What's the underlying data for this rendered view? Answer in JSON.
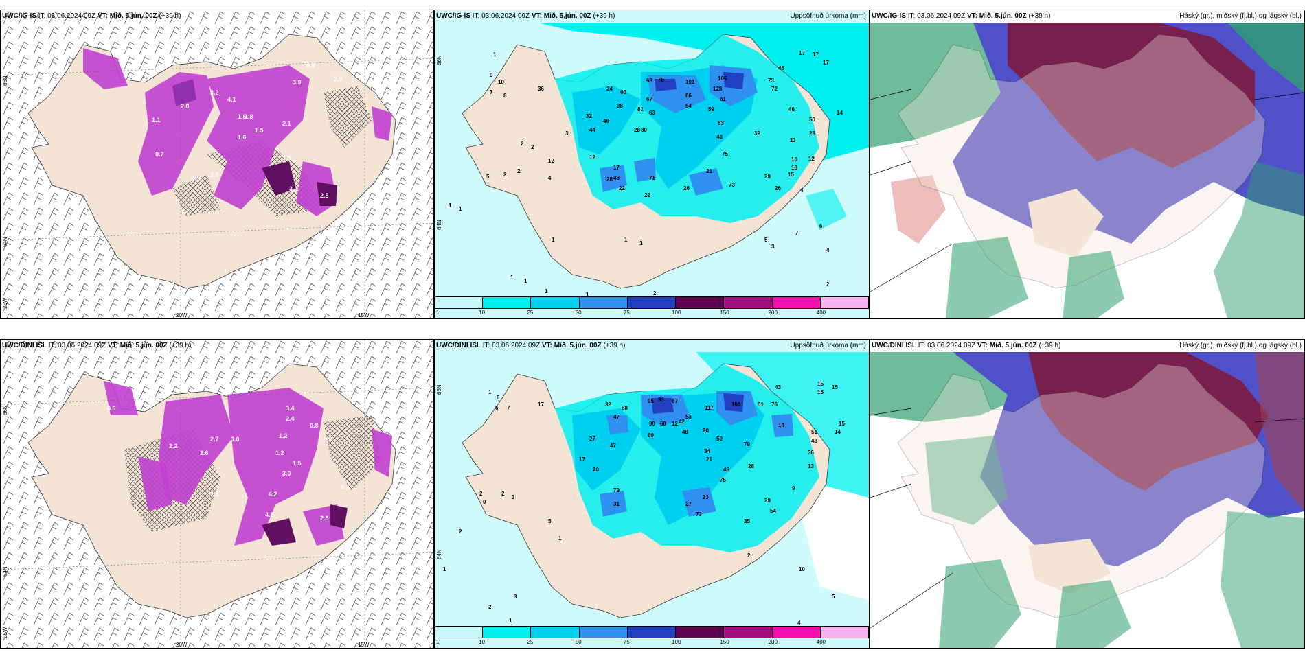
{
  "colors": {
    "land": "#f3e4d6",
    "sea_light": "#cffbfb",
    "precip_levels": [
      "#c6fafa",
      "#00f0f0",
      "#00d0f0",
      "#3090f0",
      "#2040c0",
      "#600050",
      "#a01080",
      "#f010b0",
      "#f8b0f0"
    ],
    "snow": "#c040d0",
    "snow_dark": "#601060",
    "cloud_high": "#7a1c48",
    "cloud_mid": "#5050c8",
    "cloud_low": "#30a070"
  },
  "rows": [
    {
      "model": "UWC/IG-IS",
      "it_label": "IT: 03.06.2024 09Z",
      "vt_label": "VT: Mið. 5.jún. 00Z",
      "lead": "(+39 h)",
      "snow_values": [
        "1.6",
        "1.6",
        "1.5",
        "2.1",
        "3.5",
        "3.2",
        "2.8",
        "2.5",
        "0.5",
        "2.9",
        "3.9",
        "0.9",
        "4.1",
        "3.2",
        "2.0",
        "1.8",
        "1.1",
        "0.7"
      ],
      "precip_values": [
        "1",
        "10",
        "9",
        "8",
        "7",
        "36",
        "24",
        "60",
        "68",
        "78",
        "101",
        "105",
        "128",
        "73",
        "45",
        "22",
        "38",
        "32",
        "46",
        "44",
        "59",
        "67",
        "66",
        "81",
        "54",
        "63",
        "28",
        "12",
        "3",
        "2",
        "2",
        "2",
        "2",
        "5",
        "4",
        "17",
        "12",
        "28",
        "43",
        "71",
        "26",
        "22",
        "29",
        "26",
        "21",
        "75",
        "73",
        "50",
        "46",
        "30",
        "43",
        "53",
        "61",
        "72",
        "32",
        "28",
        "13",
        "10",
        "10",
        "15",
        "12",
        "14",
        "17",
        "17",
        "17",
        "3",
        "5",
        "7",
        "4",
        "6",
        "2",
        "1",
        "1",
        "1",
        "1",
        "1",
        "1",
        "1",
        "1",
        "1",
        "2",
        "6",
        "4"
      ],
      "cloud_title": "Háský (gr.), miðský (fj.bl.) og lágský (bl.)"
    },
    {
      "model": "UWC/DINI ISL",
      "it_label": "IT: 03.06.2024 09Z",
      "vt_label": "VT: Mið. 5.jún. 00Z",
      "lead": "(+39 h)",
      "snow_values": [
        "2.7",
        "3.0",
        "2.5",
        "2.6",
        "3.0",
        "4.5",
        "4.2",
        "2.2",
        "1.5",
        "1.2",
        "2.6",
        "0.4",
        "0.9",
        "1.2",
        "2.4",
        "3.4",
        "0.8",
        "0.6"
      ],
      "precip_values": [
        "1",
        "6",
        "6",
        "7",
        "17",
        "32",
        "58",
        "47",
        "48",
        "95",
        "93",
        "67",
        "117",
        "108",
        "51",
        "76",
        "43",
        "15",
        "15",
        "15",
        "15",
        "14",
        "51",
        "48",
        "36",
        "13",
        "9",
        "10",
        "5",
        "4",
        "14",
        "2",
        "2",
        "1",
        "2",
        "1",
        "3",
        "17",
        "27",
        "20",
        "47",
        "79",
        "27",
        "31",
        "23",
        "21",
        "73",
        "75",
        "43",
        "28",
        "29",
        "54",
        "35",
        "59",
        "42",
        "20",
        "53",
        "90",
        "68",
        "12",
        "69",
        "79",
        "34",
        "1",
        "2",
        "0",
        "2",
        "3",
        "5"
      ],
      "cloud_title": "Háský (gr.), miðský (fj.bl.) og lágský (bl.)"
    }
  ],
  "precip_title": "Uppsöfnuð úrkoma (mm)",
  "colorbar_ticks": [
    "1",
    "10",
    "25",
    "50",
    "75",
    "100",
    "150",
    "200",
    "400"
  ],
  "lon_labels": [
    "20W",
    "15W"
  ],
  "lat_labels": [
    "66N",
    "64N",
    "25W"
  ],
  "precip_lat_labels": [
    "66N",
    "64N"
  ]
}
